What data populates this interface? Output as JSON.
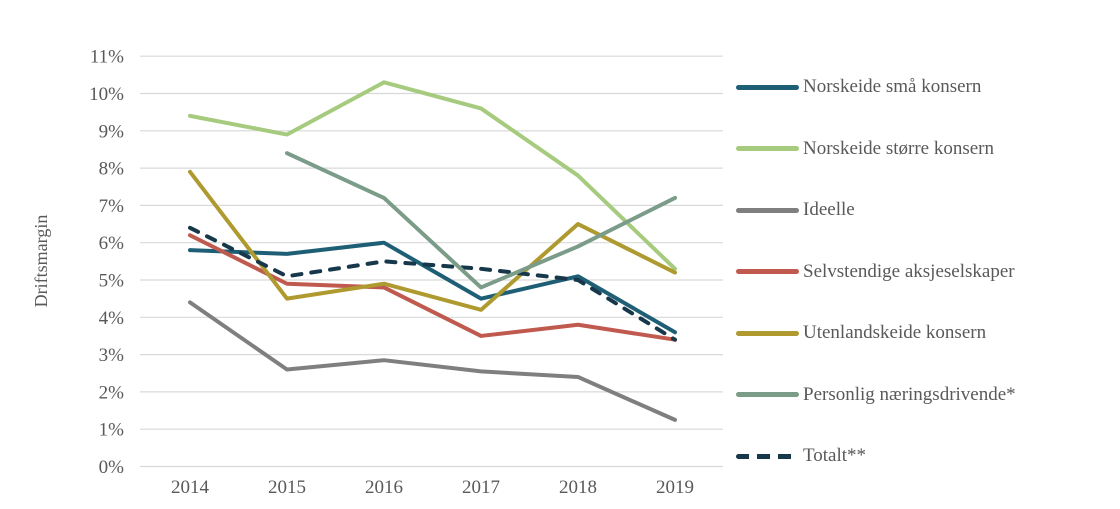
{
  "chart_data": {
    "type": "line",
    "title": "",
    "xlabel": "",
    "ylabel": "Driftsmargin",
    "ylim": [
      0,
      11
    ],
    "grid": "horizontal",
    "legend_position": "right",
    "categories": [
      "2014",
      "2015",
      "2016",
      "2017",
      "2018",
      "2019"
    ],
    "ytick_labels": [
      "0%",
      "1%",
      "2%",
      "3%",
      "4%",
      "5%",
      "6%",
      "7%",
      "8%",
      "9%",
      "10%",
      "11%"
    ],
    "series": [
      {
        "name": "Norskeide små konsern",
        "slug": "norskeide-smaa-konsern",
        "color": "#1F5F75",
        "dash": false,
        "z": 1,
        "values": [
          5.8,
          5.7,
          6.0,
          4.5,
          5.1,
          3.6
        ]
      },
      {
        "name": "Norskeide større konsern",
        "slug": "norskeide-stoerre-konsern",
        "color": "#A6CB7E",
        "dash": false,
        "z": 2,
        "values": [
          9.4,
          8.9,
          10.3,
          9.6,
          7.8,
          5.3
        ]
      },
      {
        "name": "Ideelle",
        "slug": "ideelle",
        "color": "#7F7F7F",
        "dash": false,
        "z": 3,
        "values": [
          4.4,
          2.6,
          2.85,
          2.55,
          2.4,
          1.25
        ]
      },
      {
        "name": "Selvstendige aksjeselskaper",
        "slug": "selvstendige-aksjeselskaper",
        "color": "#C05A4F",
        "dash": false,
        "z": 4,
        "values": [
          6.2,
          4.9,
          4.8,
          3.5,
          3.8,
          3.4
        ]
      },
      {
        "name": "Utenlandskeide konsern",
        "slug": "utenlandskeide-konsern",
        "color": "#AF9A30",
        "dash": false,
        "z": 5,
        "values": [
          7.9,
          4.5,
          4.9,
          4.2,
          6.5,
          5.2
        ]
      },
      {
        "name": "Personlig næringsdrivende*",
        "slug": "personlig-naeringsdrivende",
        "color": "#7A9C88",
        "dash": false,
        "z": 7,
        "values": [
          null,
          8.4,
          7.2,
          4.8,
          5.9,
          7.2
        ]
      },
      {
        "name": "Totalt**",
        "slug": "totalt",
        "color": "#17374A",
        "dash": true,
        "z": 6,
        "values": [
          6.4,
          5.1,
          5.5,
          5.3,
          5.0,
          3.4
        ]
      }
    ]
  },
  "colors": {
    "gridline": "#D9D9D9",
    "axis_text": "#595959",
    "background": "#FFFFFF"
  }
}
